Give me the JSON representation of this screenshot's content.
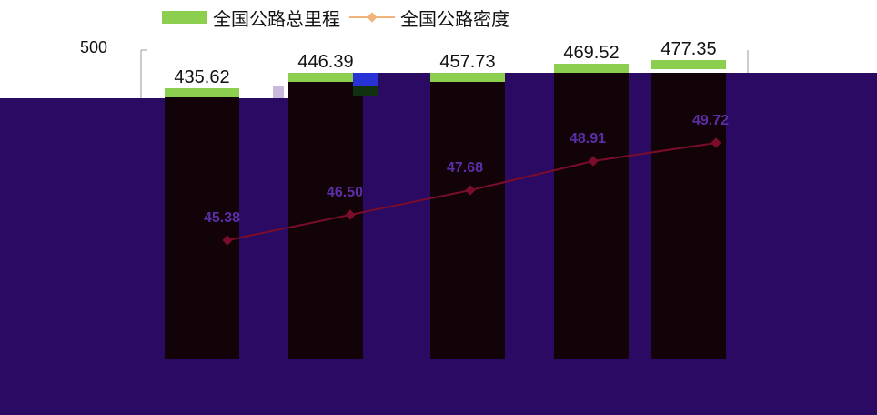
{
  "legend": {
    "bar_label": "全国公路总里程",
    "line_label": "全国公路密度"
  },
  "axis": {
    "y_top_tick": "500"
  },
  "colors": {
    "bar_top": "#8ccf4f",
    "bar_fill": "#120308",
    "overlay": "#2a0a63",
    "line": "#7a0d2b",
    "line_label": "#5b2ea8",
    "legend_line": "#f0b47c"
  },
  "chart_data": {
    "type": "bar",
    "categories": [
      "",
      "",
      "",
      "",
      ""
    ],
    "series": [
      {
        "values": [
          435.62,
          446.39,
          457.73,
          469.52,
          477.35
        ]
      },
      {
        "type": "line",
        "values": [
          45.38,
          46.5,
          47.68,
          48.91,
          49.72
        ]
      }
    ],
    "ylabel": "",
    "xlabel": "",
    "title": ""
  }
}
